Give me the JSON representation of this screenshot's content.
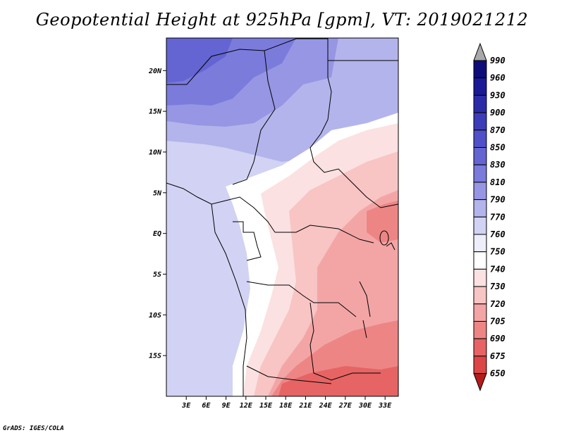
{
  "title": "Geopotential Height at 925hPa [gpm], VT: 2019021212",
  "credit": "GrADS: IGES/COLA",
  "map": {
    "lon_range": [
      0,
      35
    ],
    "lat_range": [
      -20,
      24
    ],
    "lon_ticks": [
      {
        "value": 3,
        "label": "3E"
      },
      {
        "value": 6,
        "label": "6E"
      },
      {
        "value": 9,
        "label": "9E"
      },
      {
        "value": 12,
        "label": "12E"
      },
      {
        "value": 15,
        "label": "15E"
      },
      {
        "value": 18,
        "label": "18E"
      },
      {
        "value": 21,
        "label": "21E"
      },
      {
        "value": 24,
        "label": "24E"
      },
      {
        "value": 27,
        "label": "27E"
      },
      {
        "value": 30,
        "label": "30E"
      },
      {
        "value": 33,
        "label": "33E"
      }
    ],
    "lat_ticks": [
      {
        "value": 20,
        "label": "20N"
      },
      {
        "value": 15,
        "label": "15N"
      },
      {
        "value": 10,
        "label": "10N"
      },
      {
        "value": 5,
        "label": "5N"
      },
      {
        "value": 0,
        "label": "EQ"
      },
      {
        "value": -5,
        "label": "5S"
      },
      {
        "value": -10,
        "label": "10S"
      },
      {
        "value": -15,
        "label": "15S"
      }
    ]
  },
  "colorbar": {
    "levels": [
      "990",
      "960",
      "930",
      "900",
      "870",
      "850",
      "830",
      "810",
      "790",
      "770",
      "760",
      "750",
      "740",
      "730",
      "720",
      "705",
      "690",
      "675",
      "650"
    ],
    "colors": [
      "#0d0d7a",
      "#1a1a96",
      "#2b2ba8",
      "#3c3cb8",
      "#5050c8",
      "#6464d2",
      "#7b7bdc",
      "#9696e4",
      "#b4b4ec",
      "#d2d2f4",
      "#eeeefa",
      "#ffffff",
      "#fbe1e1",
      "#f8c4c4",
      "#f3a5a5",
      "#ee8585",
      "#e66464",
      "#dc4646",
      "#c82a2a",
      "#b41c1c"
    ]
  }
}
